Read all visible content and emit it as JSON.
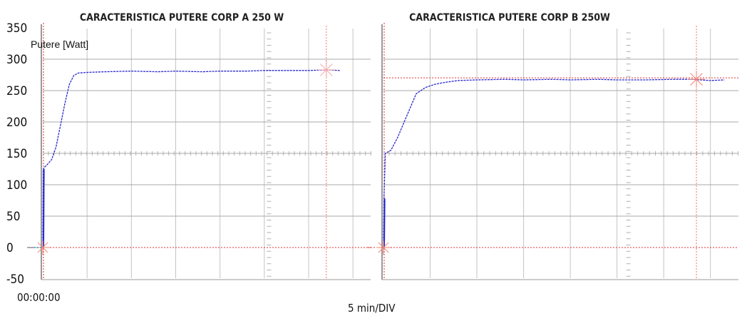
{
  "chart_data": [
    {
      "type": "line",
      "title": "CARACTERISTICA PUTERE CORP A 250 W",
      "ylabel": "Putere [Watt]",
      "ylim": [
        -50,
        350
      ],
      "yticks": [
        350,
        300,
        250,
        200,
        150,
        100,
        50,
        0,
        -50
      ],
      "x_start_label": "00:00:00",
      "x_division_label": "5 min/DIV",
      "x_unit": "min",
      "xlim": [
        0,
        37
      ],
      "grid": true,
      "series": [
        {
          "color": "#2a2ad0",
          "x": [
            0,
            0.05,
            0.2,
            0.5,
            1,
            1.5,
            2,
            2.5,
            3,
            3.5,
            4,
            5,
            7,
            10,
            13,
            15,
            18,
            20,
            23,
            25,
            28,
            30,
            32,
            33.5
          ],
          "y": [
            0,
            125,
            128,
            132,
            140,
            160,
            195,
            230,
            260,
            274,
            278,
            279,
            280,
            281,
            280,
            281,
            280,
            281,
            281,
            282,
            282,
            282,
            283,
            282
          ]
        }
      ],
      "markers": [
        {
          "x": 0,
          "y": 0,
          "color": "#f08070"
        },
        {
          "x": 32,
          "y": 283,
          "color": "#f4a8a8"
        }
      ]
    },
    {
      "type": "line",
      "title": "CARACTERISTICA PUTERE CORP B 250W",
      "ylim": [
        -50,
        350
      ],
      "xlim": [
        0,
        38
      ],
      "grid": true,
      "series": [
        {
          "color": "#2a2ad0",
          "x": [
            0,
            0.05,
            0.2,
            0.8,
            1.5,
            2.5,
            3.5,
            4.5,
            5.5,
            6.5,
            8,
            10,
            13,
            15,
            18,
            20,
            23,
            25,
            28,
            31,
            33,
            35,
            36.5
          ],
          "y": [
            0,
            78,
            150,
            155,
            175,
            210,
            245,
            255,
            260,
            263,
            266,
            267,
            268,
            267,
            268,
            267,
            268,
            267,
            267,
            268,
            268,
            266,
            267
          ]
        }
      ],
      "markers": [
        {
          "x": 0,
          "y": 0,
          "color": "#f08070"
        },
        {
          "x": 33.5,
          "y": 268,
          "color": "#f08070"
        }
      ]
    }
  ]
}
